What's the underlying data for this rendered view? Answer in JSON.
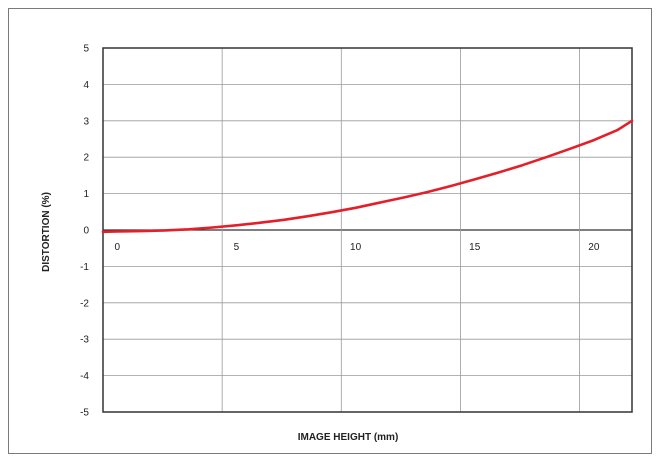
{
  "chart_data": {
    "type": "line",
    "title": "",
    "xlabel": "IMAGE HEIGHT (mm)",
    "ylabel": "DISTORTION (%)",
    "xlim": [
      -0.6,
      21.6
    ],
    "ylim": [
      -5,
      5
    ],
    "x_ticks": [
      0,
      5,
      10,
      15,
      20
    ],
    "x_tick_labels": [
      "0",
      "5",
      "10",
      "15",
      "20"
    ],
    "y_ticks": [
      5,
      4,
      3,
      2,
      1,
      0,
      -1,
      -2,
      -3,
      -4,
      -5
    ],
    "y_tick_labels": [
      "5",
      "4",
      "3",
      "2",
      "1",
      "0",
      "-1",
      "-2",
      "-3",
      "-4",
      "-5"
    ],
    "x_gridlines": [
      4.4,
      9.4,
      14.4,
      19.4
    ],
    "grid": true,
    "legend": "none",
    "colors": {
      "curve": "#e3202a",
      "grid": "#9a9a9a",
      "axes": "#333333",
      "frame": "#7a7a7a"
    },
    "series": [
      {
        "x": [
          -0.6,
          0,
          1,
          2,
          3,
          4,
          5,
          6,
          7,
          8,
          9,
          10,
          11,
          12,
          13,
          14,
          15,
          16,
          17,
          18,
          19,
          20,
          21,
          21.6
        ],
        "y": [
          -0.05,
          -0.04,
          -0.03,
          -0.01,
          0.02,
          0.07,
          0.13,
          0.2,
          0.28,
          0.38,
          0.49,
          0.61,
          0.75,
          0.89,
          1.04,
          1.21,
          1.39,
          1.58,
          1.78,
          2.0,
          2.23,
          2.47,
          2.75,
          3.0
        ]
      }
    ]
  }
}
